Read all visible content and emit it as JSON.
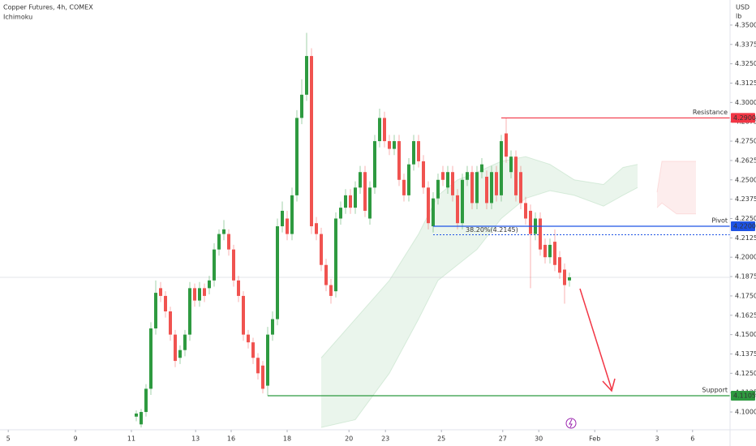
{
  "chart_data": {
    "type": "candlestick",
    "title": "Copper Futures, 4h, COMEX",
    "subtitle": "Ichimoku",
    "currency": "USD",
    "unit": "lb",
    "up_color": "#2e9a40",
    "down_color": "#f05350",
    "ylim": [
      4.0885,
      4.3662
    ],
    "yticks": [
      {
        "value": 4.1,
        "label": "4.1000"
      },
      {
        "value": 4.1125,
        "label": "4.1125"
      },
      {
        "value": 4.125,
        "label": "4.1250"
      },
      {
        "value": 4.1375,
        "label": "4.1375"
      },
      {
        "value": 4.15,
        "label": "4.1500"
      },
      {
        "value": 4.1625,
        "label": "4.1625"
      },
      {
        "value": 4.175,
        "label": "4.1750"
      },
      {
        "value": 4.1875,
        "label": "4.1875"
      },
      {
        "value": 4.2,
        "label": "4.2000"
      },
      {
        "value": 4.2125,
        "label": "4.2125"
      },
      {
        "value": 4.225,
        "label": "4.2250"
      },
      {
        "value": 4.2375,
        "label": "4.2375"
      },
      {
        "value": 4.25,
        "label": "4.2500"
      },
      {
        "value": 4.2625,
        "label": "4.2625"
      },
      {
        "value": 4.275,
        "label": "4.2750"
      },
      {
        "value": 4.2875,
        "label": "4.2875"
      },
      {
        "value": 4.3,
        "label": "4.3000"
      },
      {
        "value": 4.3125,
        "label": "4.3125"
      },
      {
        "value": 4.325,
        "label": "4.3250"
      },
      {
        "value": 4.3375,
        "label": "4.3375"
      },
      {
        "value": 4.35,
        "label": "4.3500"
      }
    ],
    "xlim": [
      -28,
      122
    ],
    "xticks": [
      {
        "value": -26.3,
        "label": "5"
      },
      {
        "value": -12.5,
        "label": "9"
      },
      {
        "value": -1,
        "label": "11"
      },
      {
        "value": 12.2,
        "label": "13"
      },
      {
        "value": 19.5,
        "label": "16"
      },
      {
        "value": 31,
        "label": "18"
      },
      {
        "value": 43.7,
        "label": "20"
      },
      {
        "value": 51.2,
        "label": "23"
      },
      {
        "value": 62.7,
        "label": "25"
      },
      {
        "value": 75.3,
        "label": "27"
      },
      {
        "value": 82.7,
        "label": "30"
      },
      {
        "value": 94.2,
        "label": "Feb"
      },
      {
        "value": 107,
        "label": "3"
      },
      {
        "value": 114.3,
        "label": "6"
      }
    ],
    "x": [
      0,
      1,
      2,
      3,
      4,
      5,
      6,
      7,
      8,
      9,
      10,
      11,
      12,
      13,
      14,
      15,
      16,
      17,
      18,
      19,
      20,
      21,
      22,
      23,
      24,
      25,
      26,
      27,
      28,
      29,
      30,
      31,
      32,
      33,
      34,
      35,
      36,
      37,
      38,
      39,
      40,
      41,
      42,
      43,
      44,
      45,
      46,
      47,
      48,
      49,
      50,
      51,
      52,
      53,
      54,
      55,
      56,
      57,
      58,
      59,
      60,
      61,
      62,
      63,
      64,
      65,
      66,
      67,
      68,
      69,
      70,
      71,
      72,
      73,
      74,
      75,
      76,
      77,
      78,
      79,
      80,
      81,
      82,
      83,
      84,
      85,
      86,
      87,
      88,
      89
    ],
    "open": [
      4.097,
      4.092,
      4.1,
      4.115,
      4.154,
      4.18,
      4.175,
      4.165,
      4.15,
      4.135,
      4.14,
      4.15,
      4.18,
      4.172,
      4.18,
      4.18,
      4.185,
      4.205,
      4.215,
      4.215,
      4.205,
      4.185,
      4.175,
      4.15,
      4.145,
      4.135,
      4.13,
      4.117,
      4.15,
      4.16,
      4.22,
      4.225,
      4.215,
      4.24,
      4.29,
      4.305,
      4.33,
      4.222,
      4.215,
      4.195,
      4.182,
      4.178,
      4.225,
      4.232,
      4.24,
      4.232,
      4.245,
      4.255,
      4.225,
      4.245,
      4.275,
      4.29,
      4.275,
      4.27,
      4.275,
      4.25,
      4.24,
      4.26,
      4.275,
      4.262,
      4.245,
      4.22,
      4.238,
      4.255,
      4.245,
      4.255,
      4.24,
      4.222,
      4.25,
      4.255,
      4.235,
      4.255,
      4.252,
      4.235,
      4.255,
      4.24,
      4.28,
      4.255,
      4.265,
      4.255,
      4.235,
      4.23,
      4.215,
      4.225,
      4.208,
      4.2,
      4.21,
      4.2,
      4.192,
      4.185
    ],
    "high": [
      4.101,
      4.102,
      4.118,
      4.158,
      4.185,
      4.184,
      4.178,
      4.168,
      4.153,
      4.143,
      4.153,
      4.184,
      4.183,
      4.184,
      4.183,
      4.188,
      4.209,
      4.218,
      4.224,
      4.218,
      4.208,
      4.188,
      4.178,
      4.153,
      4.148,
      4.138,
      4.133,
      4.155,
      4.165,
      4.225,
      4.236,
      4.23,
      4.245,
      4.295,
      4.315,
      4.345,
      4.335,
      4.226,
      4.219,
      4.199,
      4.186,
      4.229,
      4.236,
      4.244,
      4.244,
      4.249,
      4.259,
      4.259,
      4.249,
      4.279,
      4.296,
      4.294,
      4.279,
      4.279,
      4.279,
      4.254,
      4.264,
      4.279,
      4.279,
      4.266,
      4.249,
      4.242,
      4.254,
      4.259,
      4.259,
      4.259,
      4.244,
      4.254,
      4.259,
      4.259,
      4.259,
      4.264,
      4.256,
      4.259,
      4.259,
      4.279,
      4.29,
      4.269,
      4.269,
      4.259,
      4.239,
      4.234,
      4.229,
      4.229,
      4.212,
      4.212,
      4.218,
      4.204,
      4.196,
      4.19
    ],
    "low": [
      4.094,
      4.09,
      4.097,
      4.111,
      4.15,
      4.171,
      4.161,
      4.146,
      4.129,
      4.131,
      4.136,
      4.146,
      4.168,
      4.168,
      4.171,
      4.176,
      4.181,
      4.201,
      4.211,
      4.201,
      4.181,
      4.171,
      4.146,
      4.141,
      4.131,
      4.121,
      4.112,
      4.1105,
      4.146,
      4.156,
      4.216,
      4.211,
      4.211,
      4.236,
      4.286,
      4.301,
      4.215,
      4.211,
      4.191,
      4.178,
      4.17,
      4.174,
      4.221,
      4.228,
      4.228,
      4.228,
      4.241,
      4.226,
      4.221,
      4.241,
      4.271,
      4.271,
      4.266,
      4.266,
      4.246,
      4.236,
      4.236,
      4.256,
      4.258,
      4.241,
      4.218,
      4.216,
      4.234,
      4.246,
      4.241,
      4.236,
      4.218,
      4.218,
      4.246,
      4.231,
      4.231,
      4.251,
      4.231,
      4.231,
      4.236,
      4.236,
      4.261,
      4.251,
      4.236,
      4.231,
      4.221,
      4.18,
      4.211,
      4.201,
      4.196,
      4.196,
      4.191,
      4.186,
      4.17,
      4.181
    ],
    "close": [
      4.099,
      4.1,
      4.115,
      4.154,
      4.177,
      4.175,
      4.165,
      4.15,
      4.133,
      4.14,
      4.15,
      4.18,
      4.172,
      4.18,
      4.175,
      4.185,
      4.205,
      4.215,
      4.218,
      4.205,
      4.185,
      4.175,
      4.15,
      4.145,
      4.135,
      4.125,
      4.115,
      4.15,
      4.16,
      4.22,
      4.23,
      4.215,
      4.24,
      4.29,
      4.305,
      4.33,
      4.22,
      4.215,
      4.195,
      4.182,
      4.175,
      4.225,
      4.232,
      4.24,
      4.232,
      4.245,
      4.255,
      4.23,
      4.245,
      4.275,
      4.29,
      4.275,
      4.27,
      4.275,
      4.25,
      4.24,
      4.26,
      4.275,
      4.262,
      4.245,
      4.222,
      4.238,
      4.25,
      4.25,
      4.255,
      4.24,
      4.222,
      4.25,
      4.255,
      4.235,
      4.255,
      4.26,
      4.235,
      4.255,
      4.24,
      4.275,
      4.265,
      4.265,
      4.24,
      4.235,
      4.225,
      4.215,
      4.225,
      4.205,
      4.2,
      4.208,
      4.195,
      4.19,
      4.182,
      4.187
    ],
    "clouds": [
      {
        "color": "#2e9a40",
        "x": [
          38,
          45,
          52,
          58,
          62,
          66,
          70,
          75,
          80,
          85,
          90,
          96,
          100,
          103
        ],
        "upper": [
          4.135,
          4.16,
          4.185,
          4.215,
          4.24,
          4.25,
          4.255,
          4.262,
          4.265,
          4.26,
          4.25,
          4.247,
          4.258,
          4.26
        ],
        "lower": [
          4.09,
          4.095,
          4.125,
          4.16,
          4.185,
          4.195,
          4.205,
          4.225,
          4.238,
          4.243,
          4.24,
          4.233,
          4.24,
          4.245
        ]
      },
      {
        "color": "#f05350",
        "x": [
          107,
          108,
          111,
          115
        ],
        "upper": [
          4.242,
          4.262,
          4.262,
          4.262
        ],
        "lower": [
          4.232,
          4.235,
          4.228,
          4.228
        ]
      }
    ],
    "levels": [
      {
        "name": "Resistance",
        "value": {
          "value": 4.29,
          "label": "4.2900"
        },
        "from": 75,
        "color": "#f23645"
      },
      {
        "name": "Pivot",
        "value": {
          "value": 4.22,
          "label": "4.2200"
        },
        "from": 61,
        "color": "#1e53e5"
      },
      {
        "name": "Support",
        "value": {
          "value": 4.1105,
          "label": "4.1105"
        },
        "from": 27,
        "color": "#2e9a40"
      }
    ],
    "fib": {
      "label": "38.20%(4.2145)",
      "value": 4.2145,
      "from": 61,
      "color": "#1e53e5"
    }
  }
}
